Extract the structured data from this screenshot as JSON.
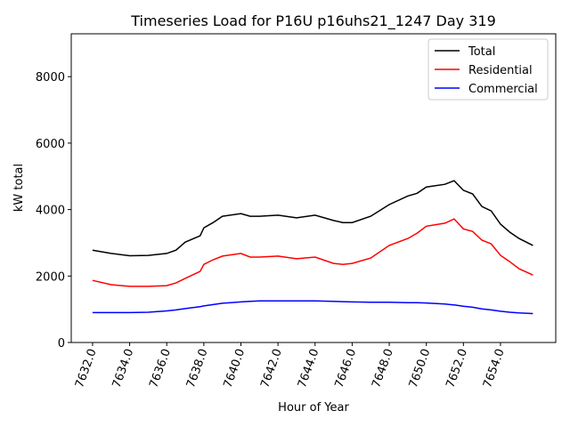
{
  "chart_data": {
    "type": "line",
    "title": "Timeseries Load for P16U p16uhs21_1247  Day 319",
    "xlabel": "Hour of Year",
    "ylabel": "kW total",
    "xlim": [
      7630.85,
      7656.98
    ],
    "ylim": [
      0,
      9290
    ],
    "xticks": [
      7632,
      7634,
      7636,
      7638,
      7640,
      7642,
      7644,
      7646,
      7648,
      7650,
      7652,
      7654
    ],
    "xtick_labels": [
      "7632.0",
      "7634.0",
      "7636.0",
      "7638.0",
      "7640.0",
      "7642.0",
      "7644.0",
      "7646.0",
      "7648.0",
      "7650.0",
      "7652.0",
      "7654.0"
    ],
    "yticks": [
      0,
      2000,
      4000,
      6000,
      8000
    ],
    "ytick_labels": [
      "0",
      "2000",
      "4000",
      "6000",
      "8000"
    ],
    "grid": false,
    "legend_position": "top-right",
    "x": [
      7632,
      7633,
      7634,
      7635,
      7636,
      7636.5,
      7637,
      7637.8,
      7638,
      7638.5,
      7639,
      7640,
      7640.5,
      7641,
      7642,
      7643,
      7644,
      7645,
      7645.5,
      7646,
      7647,
      7648,
      7649,
      7649.5,
      7650,
      7651,
      7651.5,
      7652,
      7652.5,
      7653,
      7653.5,
      7654,
      7654.5,
      7655,
      7655.75
    ],
    "series": [
      {
        "name": "Total",
        "color": "#000000",
        "values": [
          2780,
          2680,
          2610,
          2620,
          2680,
          2780,
          3020,
          3210,
          3450,
          3610,
          3800,
          3880,
          3800,
          3800,
          3830,
          3750,
          3830,
          3670,
          3610,
          3610,
          3800,
          4150,
          4410,
          4490,
          4680,
          4760,
          4870,
          4580,
          4470,
          4090,
          3960,
          3560,
          3320,
          3130,
          2920
        ]
      },
      {
        "name": "Residential",
        "color": "#ff0000",
        "values": [
          1870,
          1740,
          1690,
          1690,
          1710,
          1790,
          1930,
          2140,
          2350,
          2490,
          2600,
          2680,
          2570,
          2570,
          2600,
          2520,
          2570,
          2380,
          2350,
          2380,
          2540,
          2920,
          3130,
          3290,
          3500,
          3590,
          3720,
          3420,
          3340,
          3080,
          2970,
          2620,
          2430,
          2220,
          2030
        ]
      },
      {
        "name": "Commercial",
        "color": "#0000ff",
        "values": [
          900,
          900,
          900,
          910,
          950,
          980,
          1020,
          1080,
          1100,
          1140,
          1180,
          1220,
          1240,
          1250,
          1250,
          1250,
          1250,
          1240,
          1230,
          1220,
          1210,
          1210,
          1200,
          1200,
          1190,
          1160,
          1130,
          1090,
          1060,
          1010,
          980,
          940,
          910,
          890,
          870
        ]
      }
    ]
  }
}
